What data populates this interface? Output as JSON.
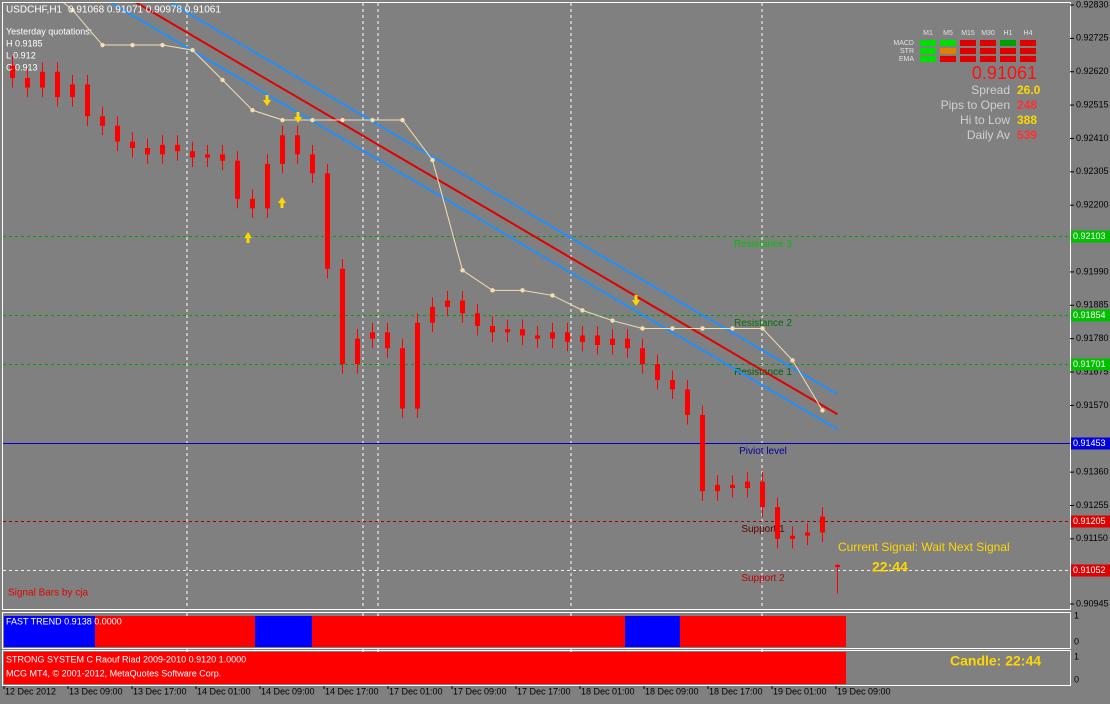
{
  "header": {
    "symbol": "USDCHF,H1",
    "quote": "0.91068 0.91071 0.90978 0.91061"
  },
  "yesterday": {
    "title": "Yesterday quotations:",
    "high": "H 0.9185",
    "low": "L 0.912",
    "close": "C 0.913"
  },
  "panel": {
    "columns": [
      "M1",
      "M5",
      "M15",
      "M30",
      "H1",
      "H4"
    ],
    "rows": [
      {
        "label": "MACD",
        "colors": [
          "#00e000",
          "#00e000",
          "#e00000",
          "#e00000",
          "#00a000",
          "#e00000"
        ]
      },
      {
        "label": "STR",
        "colors": [
          "#00e000",
          "#e08000",
          "#e00000",
          "#e00000",
          "#e00000",
          "#e00000"
        ]
      },
      {
        "label": "EMA",
        "colors": [
          "#00e000",
          "#e00000",
          "#e00000",
          "#e00000",
          "#e00000",
          "#e00000"
        ]
      }
    ],
    "price": "0.91061",
    "stats": [
      {
        "label": "Spread",
        "value": "26.0",
        "color": "#ffd700"
      },
      {
        "label": "Pips to Open",
        "value": "248",
        "color": "#ff3030"
      },
      {
        "label": "Hi to Low",
        "value": "388",
        "color": "#ffd700"
      },
      {
        "label": "Daily Av",
        "value": "539",
        "color": "#ff3030"
      }
    ]
  },
  "chart_data": {
    "type": "candlestick",
    "color": "#ff0000",
    "ylim": [
      0.90945,
      0.9283
    ],
    "yticks": [
      {
        "value": 0.9283,
        "label": "0.92830"
      },
      {
        "value": 0.92725,
        "label": "0.92725"
      },
      {
        "value": 0.9262,
        "label": "0.92620"
      },
      {
        "value": 0.92515,
        "label": "0.92515"
      },
      {
        "value": 0.9241,
        "label": "0.92410"
      },
      {
        "value": 0.92305,
        "label": "0.92305"
      },
      {
        "value": 0.922,
        "label": "0.92200"
      },
      {
        "value": 0.9199,
        "label": "0.91990"
      },
      {
        "value": 0.91885,
        "label": "0.91885"
      },
      {
        "value": 0.9178,
        "label": "0.91780"
      },
      {
        "value": 0.91675,
        "label": "0.91675"
      },
      {
        "value": 0.9157,
        "label": "0.91570"
      },
      {
        "value": 0.9136,
        "label": "0.91360"
      },
      {
        "value": 0.91255,
        "label": "0.91255"
      },
      {
        "value": 0.9115,
        "label": "0.91150"
      },
      {
        "value": 0.90945,
        "label": "0.90945"
      }
    ],
    "time_labels": [
      "12 Dec 2012",
      "13 Dec 09:00",
      "13 Dec 17:00",
      "14 Dec 01:00",
      "14 Dec 09:00",
      "14 Dec 17:00",
      "17 Dec 01:00",
      "17 Dec 09:00",
      "17 Dec 17:00",
      "18 Dec 01:00",
      "18 Dec 09:00",
      "18 Dec 17:00",
      "19 Dec 01:00",
      "19 Dec 09:00"
    ],
    "ohlc": [
      [
        0.9264,
        0.9267,
        0.9257,
        0.926
      ],
      [
        0.926,
        0.9263,
        0.9254,
        0.9257
      ],
      [
        0.9257,
        0.9265,
        0.9254,
        0.9262
      ],
      [
        0.9262,
        0.9265,
        0.9251,
        0.9254
      ],
      [
        0.9254,
        0.9261,
        0.9251,
        0.9258
      ],
      [
        0.9258,
        0.9261,
        0.9245,
        0.9248
      ],
      [
        0.9248,
        0.9251,
        0.9242,
        0.9245
      ],
      [
        0.9245,
        0.9248,
        0.9237,
        0.924
      ],
      [
        0.924,
        0.9243,
        0.9235,
        0.9238
      ],
      [
        0.9238,
        0.9241,
        0.9233,
        0.9236
      ],
      [
        0.9236,
        0.9242,
        0.9233,
        0.9239
      ],
      [
        0.9239,
        0.9242,
        0.9234,
        0.9237
      ],
      [
        0.9237,
        0.924,
        0.9232,
        0.9235
      ],
      [
        0.9235,
        0.9239,
        0.9232,
        0.9236
      ],
      [
        0.9236,
        0.9239,
        0.9231,
        0.9234
      ],
      [
        0.9234,
        0.9237,
        0.9219,
        0.9222
      ],
      [
        0.9222,
        0.9225,
        0.9216,
        0.9219
      ],
      [
        0.9219,
        0.9236,
        0.9216,
        0.9233
      ],
      [
        0.9233,
        0.9245,
        0.923,
        0.9242
      ],
      [
        0.9242,
        0.9245,
        0.9233,
        0.9236
      ],
      [
        0.9236,
        0.9239,
        0.9227,
        0.923
      ],
      [
        0.923,
        0.9233,
        0.9197,
        0.92
      ],
      [
        0.92,
        0.9203,
        0.9167,
        0.917
      ],
      [
        0.917,
        0.9181,
        0.9167,
        0.9178
      ],
      [
        0.9178,
        0.9183,
        0.9175,
        0.918
      ],
      [
        0.918,
        0.9183,
        0.9172,
        0.9175
      ],
      [
        0.9175,
        0.9178,
        0.9153,
        0.9156
      ],
      [
        0.9156,
        0.9186,
        0.9153,
        0.9183
      ],
      [
        0.9183,
        0.9191,
        0.918,
        0.9188
      ],
      [
        0.9188,
        0.9193,
        0.9185,
        0.919
      ],
      [
        0.919,
        0.9193,
        0.9183,
        0.9186
      ],
      [
        0.9186,
        0.9189,
        0.9179,
        0.9182
      ],
      [
        0.9182,
        0.9185,
        0.9177,
        0.918
      ],
      [
        0.918,
        0.9184,
        0.9177,
        0.9181
      ],
      [
        0.9181,
        0.9184,
        0.9176,
        0.9179
      ],
      [
        0.9179,
        0.9182,
        0.9175,
        0.9178
      ],
      [
        0.9178,
        0.9183,
        0.9175,
        0.918
      ],
      [
        0.918,
        0.9183,
        0.9174,
        0.9177
      ],
      [
        0.9177,
        0.9182,
        0.9174,
        0.9179
      ],
      [
        0.9179,
        0.9182,
        0.9173,
        0.9176
      ],
      [
        0.9176,
        0.9181,
        0.9173,
        0.9178
      ],
      [
        0.9178,
        0.9181,
        0.9172,
        0.9175
      ],
      [
        0.9175,
        0.9178,
        0.9167,
        0.917
      ],
      [
        0.917,
        0.9173,
        0.9162,
        0.9165
      ],
      [
        0.9165,
        0.9168,
        0.9159,
        0.9162
      ],
      [
        0.9162,
        0.9165,
        0.9151,
        0.9154
      ],
      [
        0.9154,
        0.9157,
        0.9127,
        0.913
      ],
      [
        0.913,
        0.9135,
        0.9127,
        0.9132
      ],
      [
        0.9132,
        0.9135,
        0.9128,
        0.9131
      ],
      [
        0.9131,
        0.9136,
        0.9128,
        0.9133
      ],
      [
        0.9133,
        0.9136,
        0.9122,
        0.9125
      ],
      [
        0.9125,
        0.9128,
        0.9112,
        0.9115
      ],
      [
        0.9115,
        0.9119,
        0.9112,
        0.9116
      ],
      [
        0.9116,
        0.912,
        0.9113,
        0.9117
      ],
      [
        0.9117,
        0.9125,
        0.9114,
        0.9122
      ],
      [
        0.91068,
        0.91071,
        0.90978,
        0.91061
      ]
    ],
    "overlays": [
      {
        "color": "#1e90ff",
        "values": [
          0.93129,
          0.92991,
          0.92852,
          0.92713,
          0.92575,
          0.92436,
          0.92298,
          0.92159,
          0.9202,
          0.91882,
          0.91743,
          0.91605
        ]
      },
      {
        "color": "#1e90ff",
        "values": [
          0.93019,
          0.92881,
          0.92742,
          0.92603,
          0.92465,
          0.92326,
          0.92188,
          0.92049,
          0.9191,
          0.91772,
          0.91633,
          0.91495
        ]
      },
      {
        "color": "#e00000",
        "values": [
          0.93066,
          0.92928,
          0.92789,
          0.9265,
          0.92512,
          0.92373,
          0.92235,
          0.92096,
          0.91957,
          0.91819,
          0.9168,
          0.91542
        ]
      }
    ],
    "trail": {
      "color": "#f5deb3",
      "values": [
        0.92972,
        0.92893,
        0.92814,
        0.92704,
        0.92704,
        0.92704,
        0.92688,
        0.92594,
        0.92499,
        0.92468,
        0.92468,
        0.92468,
        0.92468,
        0.92468,
        0.92342,
        0.91995,
        0.91932,
        0.91932,
        0.91916,
        0.91869,
        0.91837,
        0.91812,
        0.91812,
        0.91812,
        0.91812,
        0.91812,
        0.91712,
        0.91554
      ]
    },
    "levels": [
      {
        "label": "Resistance 3",
        "value": 0.92103,
        "color": "#00a000",
        "text_color": "#00c000",
        "box": "#00c000",
        "dash": true
      },
      {
        "label": "Resistance 2",
        "value": 0.91854,
        "color": "#00a000",
        "text_color": "#007000",
        "box": "#00c000",
        "dash": true
      },
      {
        "label": "Resistance 1",
        "value": 0.91701,
        "color": "#00a000",
        "text_color": "#006000",
        "box": "#00c000",
        "dash": true
      },
      {
        "label": "Piviot level",
        "value": 0.91453,
        "color": "#0000c8",
        "text_color": "#0000a0",
        "box": "#0000e0",
        "dash": false
      },
      {
        "label": "Support 1",
        "value": 0.91205,
        "color": "#a00000",
        "text_color": "#600000",
        "box": "#e00000",
        "dash": true
      },
      {
        "label": "Support 2",
        "value": 0.91052,
        "color": "#f0f0f0",
        "text_color": "#c00000",
        "box": "#e00000",
        "dash": true
      }
    ]
  },
  "signal": {
    "text": "Current Signal: Wait Next Signal",
    "time": "22:44",
    "credit": "Signal Bars by cja"
  },
  "indicators": {
    "fast_trend": "FAST TREND 0.9138 0.0000",
    "strong": "STRONG SYSTEM C Raouf Riad 2009-2010  0.9120 1.0000",
    "copyright": "MCG MT4, © 2001-2012, MetaQuotes Software Corp.",
    "candle": "Candle:  22:44",
    "one": "1",
    "zero": "0"
  }
}
